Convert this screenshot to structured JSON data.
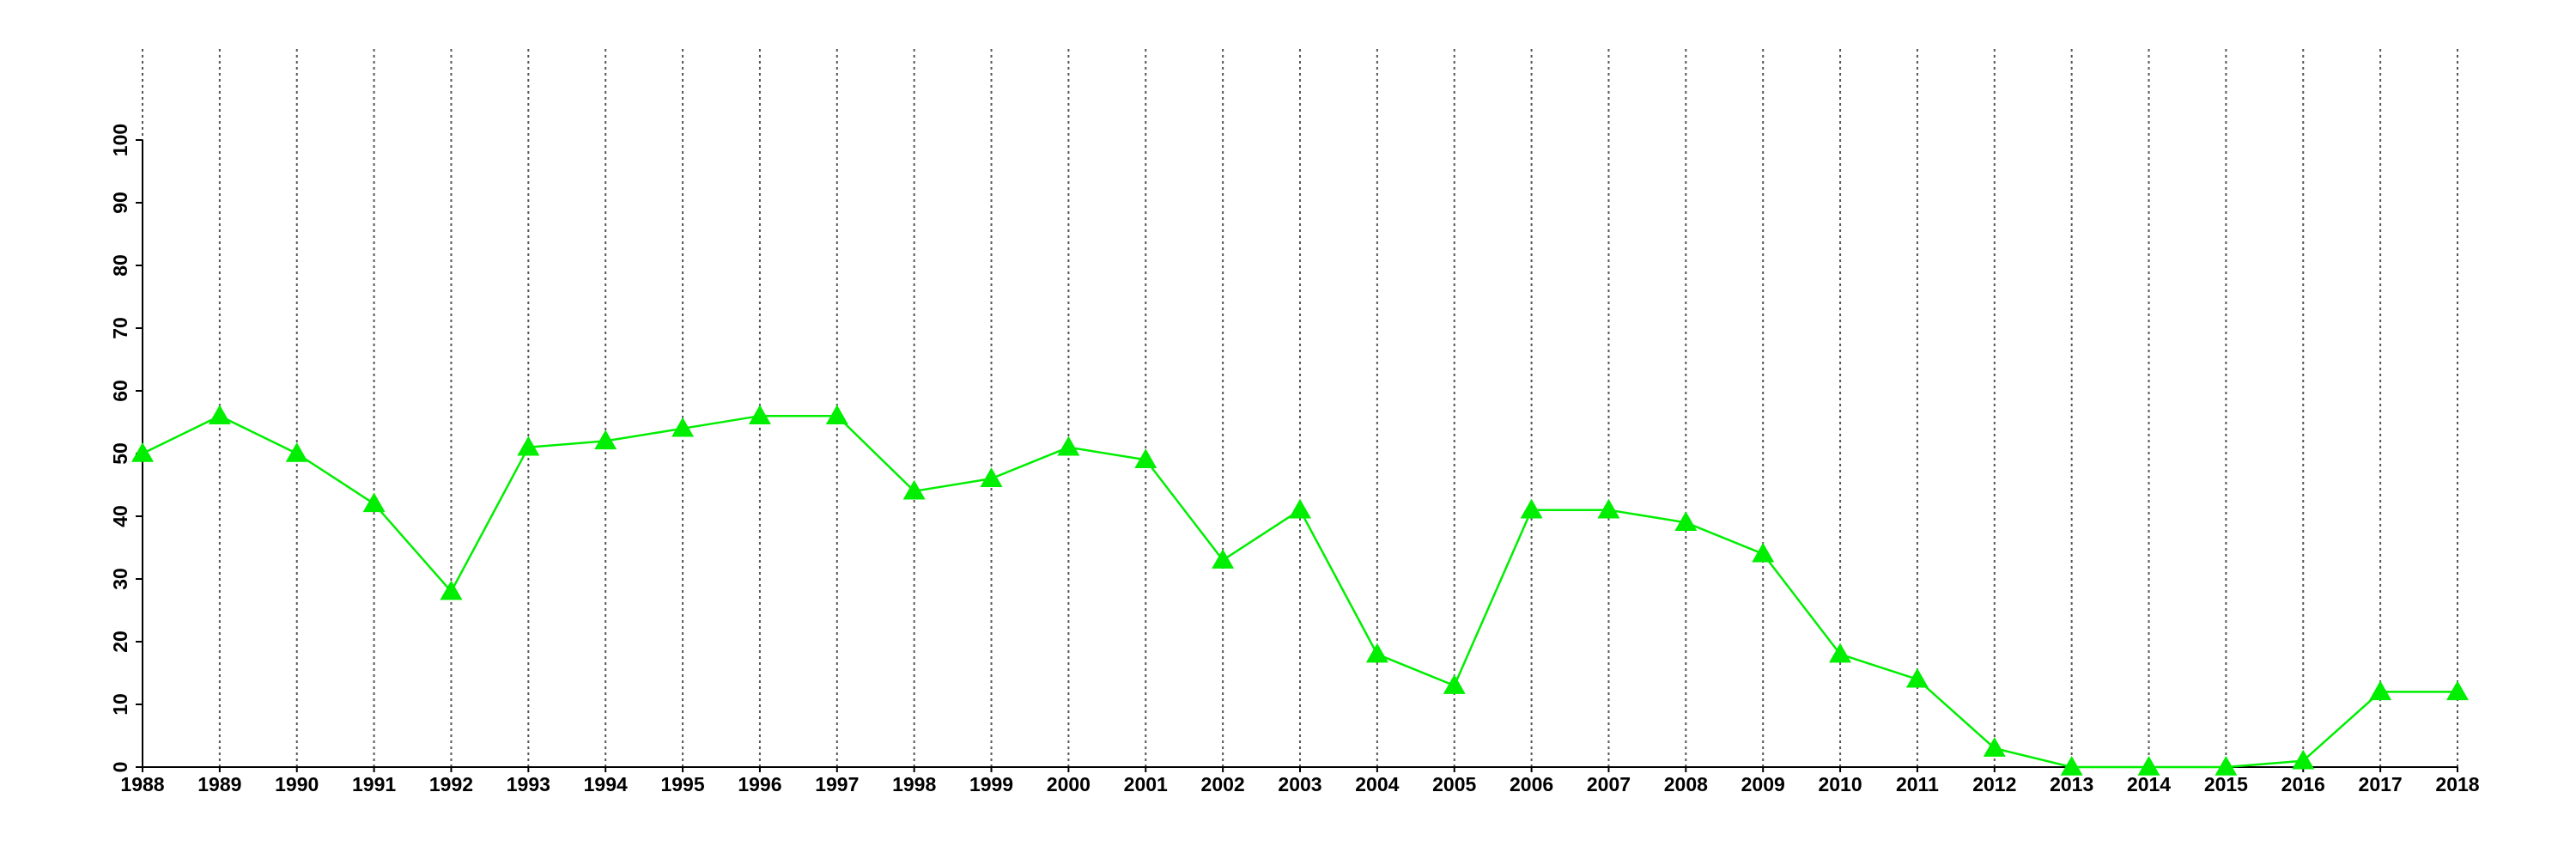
{
  "chart_data": {
    "type": "line",
    "x": [
      1988,
      1989,
      1990,
      1991,
      1992,
      1993,
      1994,
      1995,
      1996,
      1997,
      1998,
      1999,
      2000,
      2001,
      2002,
      2003,
      2004,
      2005,
      2006,
      2007,
      2008,
      2009,
      2010,
      2011,
      2012,
      2013,
      2014,
      2015,
      2016,
      2017,
      2018
    ],
    "series": [
      {
        "color": "#00ee00",
        "marker": "triangle",
        "values": [
          50,
          56,
          50,
          42,
          28,
          51,
          52,
          54,
          56,
          56,
          44,
          46,
          51,
          49,
          33,
          41,
          18,
          13,
          41,
          41,
          39,
          34,
          18,
          14,
          3,
          0,
          0,
          0,
          1,
          12,
          12
        ]
      }
    ],
    "xlim": [
      1988,
      2018
    ],
    "xticks": [
      1988,
      1989,
      1990,
      1991,
      1992,
      1993,
      1994,
      1995,
      1996,
      1997,
      1998,
      1999,
      2000,
      2001,
      2002,
      2003,
      2004,
      2005,
      2006,
      2007,
      2008,
      2009,
      2010,
      2011,
      2012,
      2013,
      2014,
      2015,
      2016,
      2017,
      2018
    ],
    "ylim": [
      0,
      100
    ],
    "yticks": [
      0,
      10,
      20,
      30,
      40,
      50,
      60,
      70,
      80,
      90,
      100
    ],
    "grid": "x"
  }
}
